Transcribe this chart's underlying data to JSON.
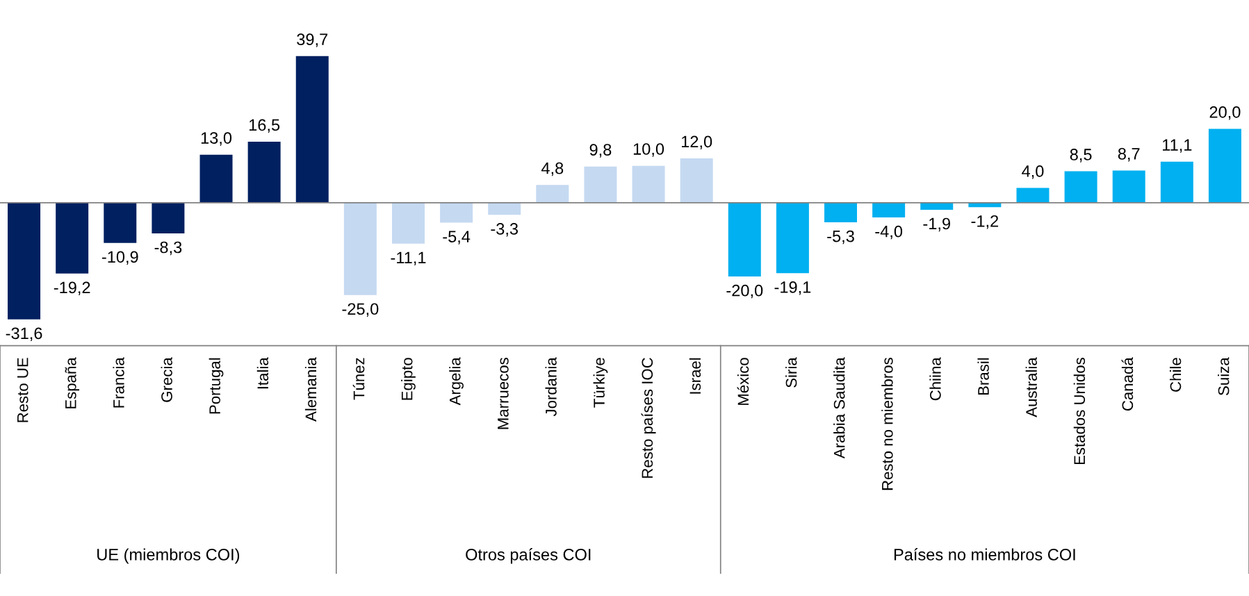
{
  "chart_data": {
    "type": "bar",
    "categories": [
      "Resto UE",
      "España",
      "Francia",
      "Grecia",
      "Portugal",
      "Italia",
      "Alemania",
      "Túnez",
      "Egipto",
      "Argelia",
      "Marruecos",
      "Jordania",
      "Türkiye",
      "Resto países IOC",
      "Israel",
      "México",
      "Siria",
      "Arabia Saudita",
      "Resto no miembros",
      "Chiina",
      "Brasil",
      "Australia",
      "Estados Unidos",
      "Canadá",
      "Chile",
      "Suiza"
    ],
    "values": [
      -31.6,
      -19.2,
      -10.9,
      -8.3,
      13.0,
      16.5,
      39.7,
      -25.0,
      -11.1,
      -5.4,
      -3.3,
      4.8,
      9.8,
      10.0,
      12.0,
      -20.0,
      -19.1,
      -5.3,
      -4.0,
      -1.9,
      -1.2,
      4.0,
      8.5,
      8.7,
      11.1,
      20.0
    ],
    "value_labels": [
      "-31,6",
      "-19,2",
      "-10,9",
      "-8,3",
      "13,0",
      "16,5",
      "39,7",
      "-25,0",
      "-11,1",
      "-5,4",
      "-3,3",
      "4,8",
      "9,8",
      "10,0",
      "12,0",
      "-20,0",
      "-19,1",
      "-5,3",
      "-4,0",
      "-1,9",
      "-1,2",
      "4,0",
      "8,5",
      "8,7",
      "11,1",
      "20,0"
    ],
    "colors": [
      "#002060",
      "#002060",
      "#002060",
      "#002060",
      "#002060",
      "#002060",
      "#002060",
      "#c5d9f1",
      "#c5d9f1",
      "#c5d9f1",
      "#c5d9f1",
      "#c5d9f1",
      "#c5d9f1",
      "#c5d9f1",
      "#c5d9f1",
      "#00b0f0",
      "#00b0f0",
      "#00b0f0",
      "#00b0f0",
      "#00b0f0",
      "#00b0f0",
      "#00b0f0",
      "#00b0f0",
      "#00b0f0",
      "#00b0f0",
      "#00b0f0"
    ],
    "annotations": [
      "UE (miembros COI)",
      "Otros países COI",
      "Países no miembros COI"
    ],
    "grid": false,
    "legend": false
  }
}
